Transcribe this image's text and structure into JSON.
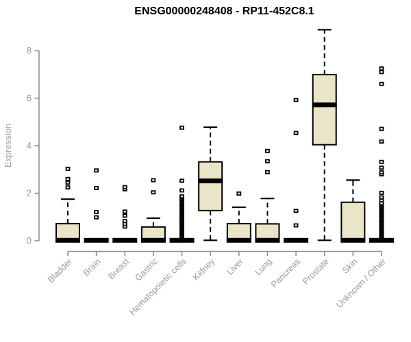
{
  "colors": {
    "box_fill": "#EAE4C8",
    "box_stroke": "#000000",
    "axis": "#8F8F8F",
    "tick_label": "#9B9B9B",
    "axis_title": "#A5A5A5",
    "title": "#000000",
    "background": "#FFFFFF"
  },
  "chart_data": {
    "type": "box",
    "title": "ENSG00000248408 - RP11-452C8.1",
    "xlabel": "",
    "ylabel": "Expression",
    "yticks": [
      0,
      2,
      4,
      6,
      8
    ],
    "ylim": [
      0,
      9.2
    ],
    "grid": false,
    "legend": "none",
    "categories": [
      "Bladder",
      "Brain",
      "Breast",
      "Gastric",
      "Hematopoietic cells",
      "Kidney",
      "Liver",
      "Lung",
      "Pancreas",
      "Prostate",
      "Skin",
      "Unknown / Other"
    ],
    "boxes": [
      {
        "category": "Bladder",
        "low": 0,
        "q1": 0,
        "median": 0.02,
        "q3": 0.72,
        "high": 1.75,
        "outliers": [
          2.25,
          2.45,
          2.6,
          3.03
        ]
      },
      {
        "category": "Brain",
        "low": 0,
        "q1": 0,
        "median": 0.02,
        "q3": 0.04,
        "high": 0.04,
        "outliers": [
          0.99,
          1.21,
          2.22,
          2.96
        ]
      },
      {
        "category": "Breast",
        "low": 0,
        "q1": 0,
        "median": 0.02,
        "q3": 0.04,
        "high": 0.04,
        "outliers": [
          0.6,
          0.71,
          0.83,
          1.06,
          1.23,
          2.17,
          2.26
        ]
      },
      {
        "category": "Gastric",
        "low": 0,
        "q1": 0,
        "median": 0.02,
        "q3": 0.58,
        "high": 0.95,
        "outliers": [
          2.04,
          2.55
        ]
      },
      {
        "category": "Hematopoietic cells",
        "low": 0,
        "q1": 0,
        "median": 0.02,
        "q3": 0.04,
        "high": 0.04,
        "outliers": [
          0.03,
          0.08,
          0.12,
          0.17,
          0.22,
          0.27,
          0.31,
          0.36,
          0.41,
          0.45,
          0.5,
          0.55,
          0.6,
          0.64,
          0.69,
          0.74,
          0.78,
          0.83,
          0.88,
          0.93,
          0.97,
          1.02,
          1.07,
          1.11,
          1.16,
          1.21,
          1.26,
          1.3,
          1.35,
          1.4,
          1.44,
          1.49,
          1.54,
          1.59,
          1.63,
          1.68,
          1.73,
          1.77,
          1.82,
          1.87,
          2.12,
          2.53,
          4.76
        ]
      },
      {
        "category": "Kidney",
        "low": 0.02,
        "q1": 1.27,
        "median": 2.52,
        "q3": 3.32,
        "high": 4.78,
        "outliers": []
      },
      {
        "category": "Liver",
        "low": 0,
        "q1": 0,
        "median": 0.02,
        "q3": 0.72,
        "high": 1.41,
        "outliers": [
          1.99
        ]
      },
      {
        "category": "Lung",
        "low": 0,
        "q1": 0,
        "median": 0.02,
        "q3": 0.71,
        "high": 1.78,
        "outliers": [
          2.89,
          3.35,
          3.78
        ]
      },
      {
        "category": "Pancreas",
        "low": 0,
        "q1": 0,
        "median": 0.02,
        "q3": 0.04,
        "high": 0.04,
        "outliers": [
          0.65,
          1.26,
          4.54,
          5.93
        ]
      },
      {
        "category": "Prostate",
        "low": 0.02,
        "q1": 4.04,
        "median": 5.72,
        "q3": 6.99,
        "high": 8.88,
        "outliers": []
      },
      {
        "category": "Skin",
        "low": 0,
        "q1": 0,
        "median": 0.02,
        "q3": 1.62,
        "high": 2.55,
        "outliers": []
      },
      {
        "category": "Unknown / Other",
        "low": 0,
        "q1": 0,
        "median": 0.02,
        "q3": 0.04,
        "high": 0.04,
        "outliers": [
          0.03,
          0.08,
          0.13,
          0.18,
          0.23,
          0.28,
          0.33,
          0.38,
          0.43,
          0.48,
          0.53,
          0.58,
          0.63,
          0.68,
          0.73,
          0.78,
          0.83,
          0.88,
          0.93,
          0.98,
          1.03,
          1.08,
          1.13,
          1.18,
          1.23,
          1.28,
          1.33,
          1.38,
          1.43,
          1.48,
          1.53,
          1.58,
          1.7,
          1.83,
          2.02,
          2.8,
          2.88,
          3.08,
          3.32,
          4.18,
          4.71,
          6.6,
          7.1,
          7.25
        ]
      }
    ]
  }
}
